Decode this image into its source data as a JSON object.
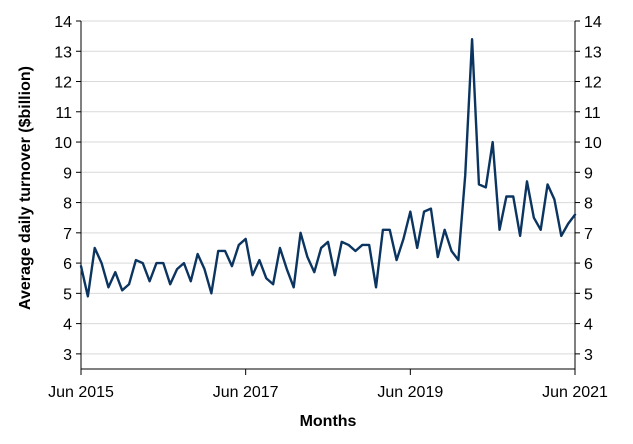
{
  "chart_data": {
    "type": "line",
    "title": "",
    "xlabel": "Months",
    "ylabel": "Average daily turnover ($billion)",
    "ylim": [
      2.5,
      14
    ],
    "y_ticks": [
      3,
      4,
      5,
      6,
      7,
      8,
      9,
      10,
      11,
      12,
      13,
      14
    ],
    "x_ticks": [
      {
        "label": "Jun 2015",
        "value": 0
      },
      {
        "label": "Jun 2017",
        "value": 24
      },
      {
        "label": "Jun 2019",
        "value": 48
      },
      {
        "label": "Jun 2021",
        "value": 72
      }
    ],
    "xlim": [
      0,
      72
    ],
    "grid": true,
    "legend": "none",
    "series_color": "#0b3560",
    "series": [
      {
        "name": "",
        "values": [
          5.9,
          4.9,
          6.5,
          6.0,
          5.2,
          5.7,
          5.1,
          5.3,
          6.1,
          6.0,
          5.4,
          6.0,
          6.0,
          5.3,
          5.8,
          6.0,
          5.4,
          6.3,
          5.8,
          5.0,
          6.4,
          6.4,
          5.9,
          6.6,
          6.8,
          5.6,
          6.1,
          5.5,
          5.3,
          6.5,
          5.8,
          5.2,
          7.0,
          6.2,
          5.7,
          6.5,
          6.7,
          5.6,
          6.7,
          6.6,
          6.4,
          6.6,
          6.6,
          5.2,
          7.1,
          7.1,
          6.1,
          6.8,
          7.7,
          6.5,
          7.7,
          7.8,
          6.2,
          7.1,
          6.4,
          6.1,
          8.9,
          13.4,
          8.6,
          8.5,
          10.0,
          7.1,
          8.2,
          8.2,
          6.9,
          8.7,
          7.5,
          7.1,
          8.6,
          8.1,
          6.9,
          7.3,
          7.6
        ]
      }
    ]
  }
}
